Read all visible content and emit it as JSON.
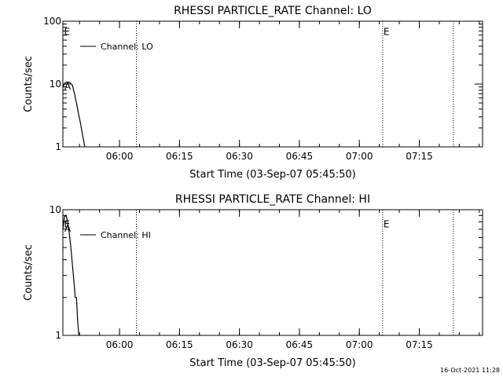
{
  "chart_data": [
    {
      "type": "line",
      "title": "RHESSI PARTICLE_RATE Channel: LO",
      "xlabel": "Start Time (03-Sep-07 05:45:50)",
      "ylabel": "Counts/sec",
      "yscale": "log",
      "ylim": [
        1,
        100
      ],
      "ytick_labels": [
        "1",
        "10",
        "100"
      ],
      "ytick_values": [
        1,
        10,
        100
      ],
      "xlim_minutes": [
        0,
        105
      ],
      "xtick_labels": [
        "06:00",
        "06:15",
        "06:30",
        "06:45",
        "07:00",
        "07:15"
      ],
      "xtick_minutes": [
        14.17,
        29.17,
        44.17,
        59.17,
        74.17,
        89.17
      ],
      "legend": {
        "entries": [
          "Channel: LO"
        ],
        "position": "top-left"
      },
      "vlines_minutes": [
        18.4,
        80.0,
        97.7
      ],
      "annotations": [
        {
          "text": "E",
          "x_minutes": 0.3,
          "y": 70
        },
        {
          "text": "E",
          "x_minutes": 80.2,
          "y": 70
        },
        {
          "text": "A",
          "x_minutes": 0.4,
          "y": 9.5
        }
      ],
      "series": [
        {
          "name": "Channel: LO",
          "x_minutes": [
            0.0,
            0.6,
            1.2,
            1.8,
            2.4,
            2.9,
            3.4,
            3.9,
            4.4,
            4.8,
            5.2,
            5.5
          ],
          "y": [
            9.0,
            10.5,
            10.8,
            10.5,
            9.5,
            7.0,
            5.0,
            3.4,
            2.4,
            1.7,
            1.25,
            1.0
          ]
        }
      ],
      "grid": false
    },
    {
      "type": "line",
      "title": "RHESSI PARTICLE_RATE Channel: HI",
      "xlabel": "Start Time (03-Sep-07 05:45:50)",
      "ylabel": "Counts/sec",
      "yscale": "log",
      "ylim": [
        1,
        10
      ],
      "ytick_labels": [
        "1",
        "10"
      ],
      "ytick_values": [
        1,
        10
      ],
      "xlim_minutes": [
        0,
        105
      ],
      "xtick_labels": [
        "06:00",
        "06:15",
        "06:30",
        "06:45",
        "07:00",
        "07:15"
      ],
      "xtick_minutes": [
        14.17,
        29.17,
        44.17,
        59.17,
        74.17,
        89.17
      ],
      "legend": {
        "entries": [
          "Channel: HI"
        ],
        "position": "top-left"
      },
      "vlines_minutes": [
        18.4,
        80.0,
        97.7
      ],
      "annotations": [
        {
          "text": "E",
          "x_minutes": 0.3,
          "y": 7.8
        },
        {
          "text": "E",
          "x_minutes": 80.2,
          "y": 7.8
        },
        {
          "text": "A",
          "x_minutes": 0.4,
          "y": 7.2
        }
      ],
      "series": [
        {
          "name": "Channel: HI",
          "x_minutes": [
            0.0,
            0.4,
            0.8,
            1.2,
            1.6,
            2.0,
            2.4,
            2.8,
            3.1,
            3.4,
            3.7,
            4.0
          ],
          "y": [
            7.0,
            8.8,
            9.0,
            8.0,
            6.5,
            5.0,
            3.6,
            2.6,
            2.0,
            2.0,
            1.3,
            1.0
          ]
        }
      ],
      "grid": false
    }
  ],
  "footer": {
    "timestamp": "16-Oct-2021 11:28"
  }
}
